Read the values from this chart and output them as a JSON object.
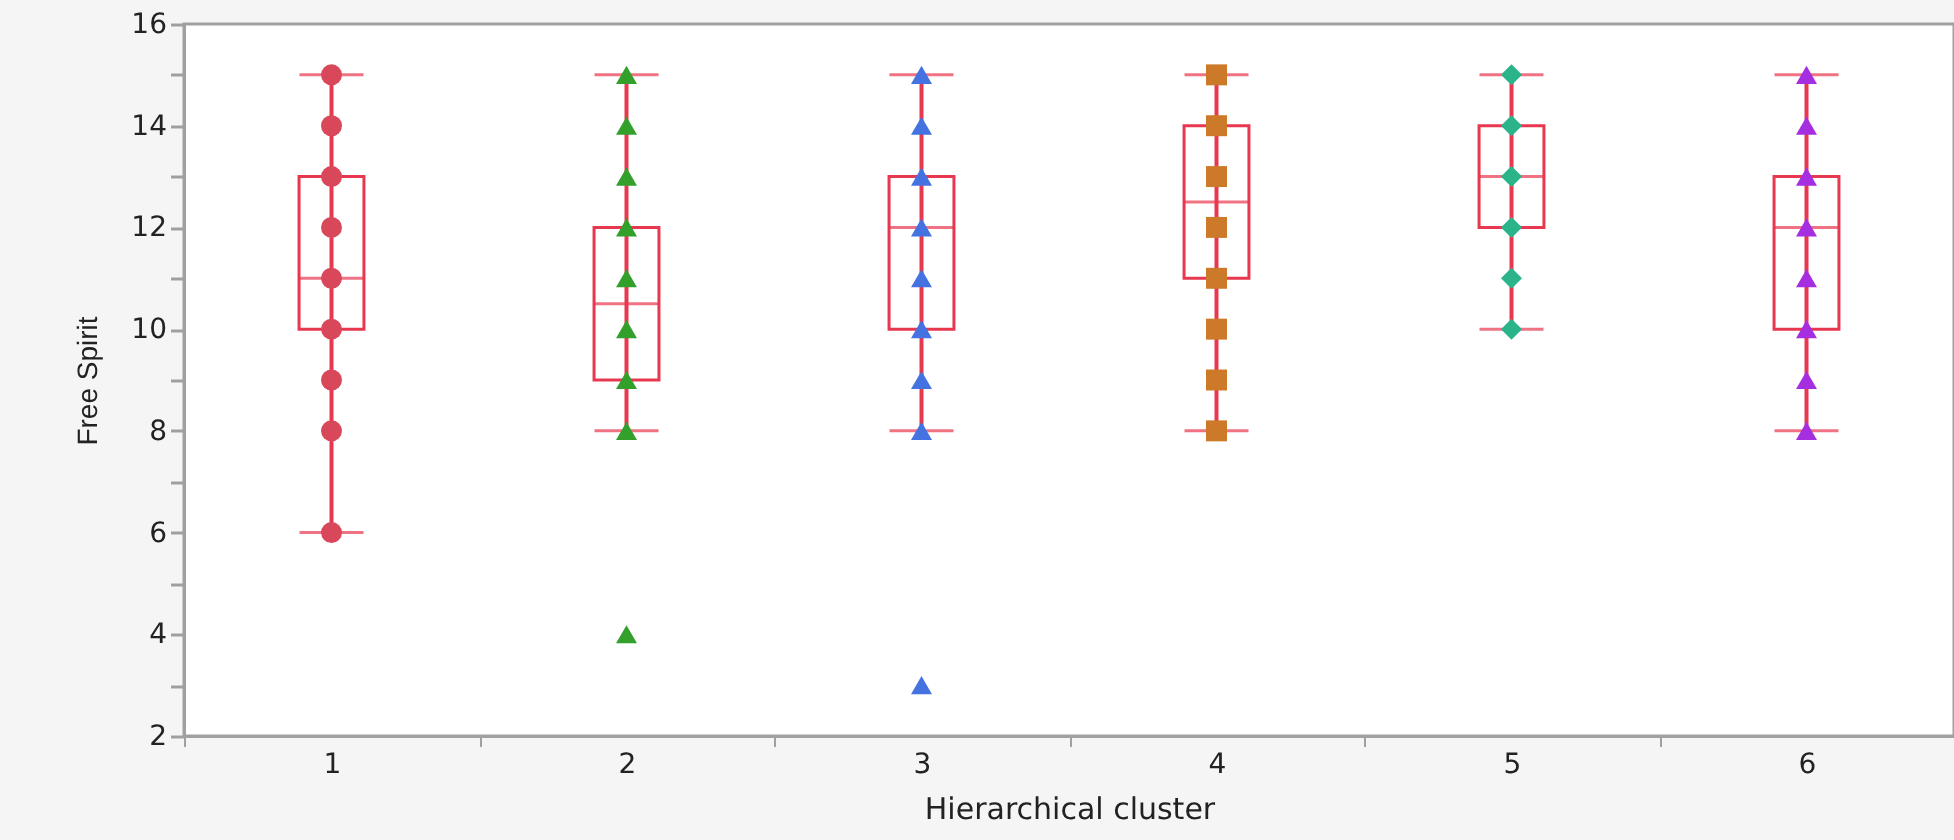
{
  "chart_data": {
    "type": "box",
    "xlabel": "Hierarchical cluster",
    "ylabel": "Free Spirit",
    "categories": [
      "1",
      "2",
      "3",
      "4",
      "5",
      "6"
    ],
    "ylim": [
      2,
      16
    ],
    "yticks": [
      2,
      {
        "value": 3,
        "label": null
      },
      4,
      {
        "value": 5,
        "label": null
      },
      6,
      {
        "value": 7,
        "label": null
      },
      8,
      {
        "value": 9,
        "label": null
      },
      10,
      {
        "value": 11,
        "label": null
      },
      12,
      {
        "value": 13,
        "label": null
      },
      14,
      {
        "value": 15,
        "label": null
      },
      16
    ],
    "grid": false,
    "series": [
      {
        "type": "box",
        "color": "#e8384f",
        "boxes": [
          {
            "low": 6,
            "q1": 10,
            "median": 11,
            "q3": 13,
            "high": 15
          },
          {
            "low": 8,
            "q1": 9,
            "median": 10.5,
            "q3": 12,
            "high": 15
          },
          {
            "low": 8,
            "q1": 10,
            "median": 12,
            "q3": 13,
            "high": 15
          },
          {
            "low": 8,
            "q1": 11,
            "median": 12.5,
            "q3": 14,
            "high": 15
          },
          {
            "low": 10,
            "q1": 12,
            "median": 13,
            "q3": 14,
            "high": 15
          },
          {
            "low": 8,
            "q1": 10,
            "median": 12,
            "q3": 13,
            "high": 15
          }
        ]
      },
      {
        "type": "scatter",
        "color": "#d9475a",
        "marker": "circle",
        "x": [
          "1",
          "1",
          "1",
          "1",
          "1",
          "1",
          "1",
          "1",
          "1"
        ],
        "values": [
          15,
          14,
          13,
          12,
          11,
          10,
          9,
          8,
          6
        ]
      },
      {
        "type": "scatter",
        "color": "#33a02c",
        "marker": "triangle",
        "x": [
          "2",
          "2",
          "2",
          "2",
          "2",
          "2",
          "2",
          "2",
          "2"
        ],
        "values": [
          15,
          14,
          13,
          12,
          11,
          10,
          9,
          8,
          4
        ]
      },
      {
        "type": "scatter",
        "color": "#4472e0",
        "marker": "triangle",
        "x": [
          "3",
          "3",
          "3",
          "3",
          "3",
          "3",
          "3",
          "3",
          "3"
        ],
        "values": [
          15,
          14,
          13,
          12,
          11,
          10,
          9,
          8,
          3
        ]
      },
      {
        "type": "scatter",
        "color": "#cc7a29",
        "marker": "square",
        "x": [
          "4",
          "4",
          "4",
          "4",
          "4",
          "4",
          "4",
          "4"
        ],
        "values": [
          15,
          14,
          13,
          12,
          11,
          10,
          9,
          8
        ]
      },
      {
        "type": "scatter",
        "color": "#2bb38a",
        "marker": "diamond",
        "x": [
          "5",
          "5",
          "5",
          "5",
          "5",
          "5"
        ],
        "values": [
          15,
          14,
          13,
          12,
          11,
          10
        ]
      },
      {
        "type": "scatter",
        "color": "#a52ee0",
        "marker": "triangle",
        "x": [
          "6",
          "6",
          "6",
          "6",
          "6",
          "6",
          "6",
          "6"
        ],
        "values": [
          15,
          14,
          13,
          12,
          11,
          10,
          9,
          8
        ]
      }
    ]
  }
}
